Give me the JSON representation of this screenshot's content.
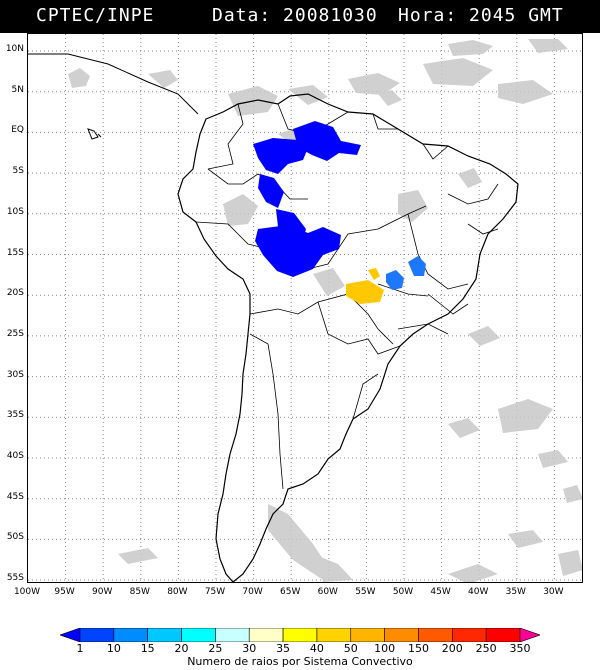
{
  "header": {
    "org": "CPTEC/INPE",
    "date_text": "Data: 20081030",
    "hour_text": "Hora: 2045 GMT"
  },
  "lat_labels": [
    "10N",
    "5N",
    "EQ",
    "5S",
    "10S",
    "15S",
    "20S",
    "25S",
    "30S",
    "35S",
    "40S",
    "45S",
    "50S",
    "55S"
  ],
  "lon_labels": [
    "100W",
    "95W",
    "90W",
    "85W",
    "80W",
    "75W",
    "70W",
    "65W",
    "60W",
    "55W",
    "50W",
    "45W",
    "40W",
    "35W",
    "30W"
  ],
  "legend": {
    "ticks": [
      "1",
      "10",
      "15",
      "20",
      "25",
      "30",
      "35",
      "40",
      "50",
      "100",
      "150",
      "200",
      "250",
      "350"
    ],
    "colors": [
      "#0000ff",
      "#0044ff",
      "#008cff",
      "#00c8ff",
      "#00ffff",
      "#c8ffff",
      "#ffffc8",
      "#ffff00",
      "#ffd200",
      "#ffb400",
      "#ff8c00",
      "#ff5a00",
      "#ff2800",
      "#ff0000",
      "#ff0096"
    ],
    "title": "Numero de raios por Sistema Convectivo"
  },
  "colors": {
    "cloud": "#c8c8c8",
    "deep_blue": "#0000ff",
    "medium_blue": "#1e78ff",
    "yellow": "#ffc800",
    "border": "#000000"
  }
}
